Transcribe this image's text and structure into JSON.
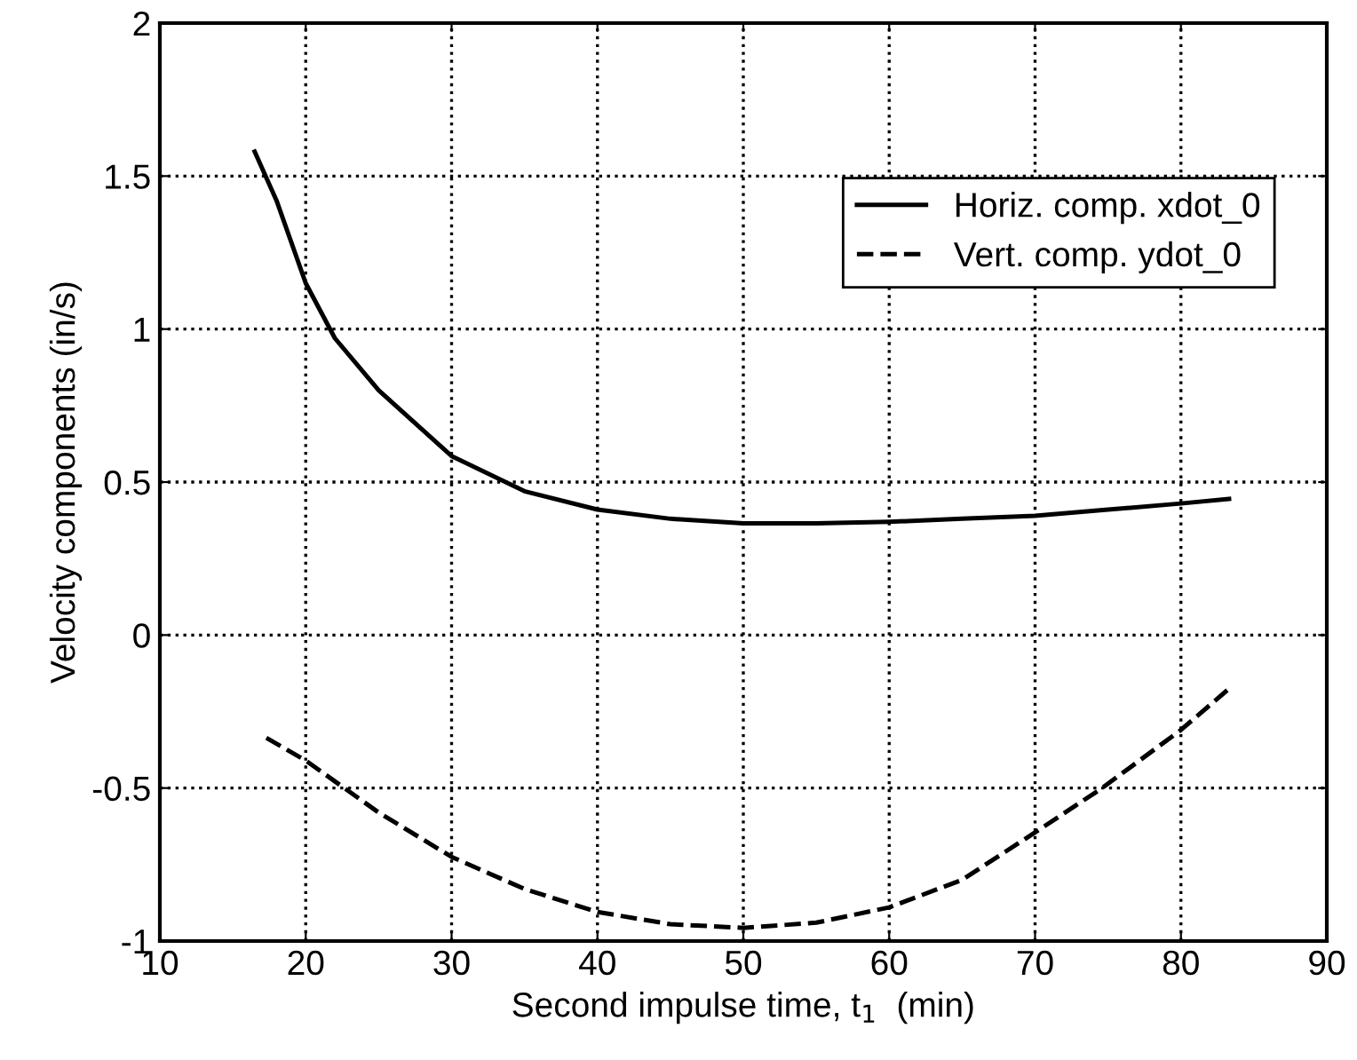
{
  "chart_data": {
    "type": "line",
    "xlabel": "Second impulse time, t$_{1}$  (min)",
    "ylabel": "Velocity components (in/s)",
    "xlim": [
      10,
      90
    ],
    "xticks": [
      10,
      20,
      30,
      40,
      50,
      60,
      70,
      80,
      90
    ],
    "ylim": [
      -1,
      2
    ],
    "yticks": [
      -1,
      -0.5,
      0,
      0.5,
      1,
      1.5,
      2
    ],
    "grid": true,
    "legend": "top right",
    "series": [
      {
        "name": "Horiz. comp. xdot_0",
        "color": "#000000",
        "line_style": "solid",
        "x": [
          16.5,
          18,
          20,
          22,
          25,
          30,
          35,
          40,
          45,
          50,
          55,
          60,
          65,
          70,
          75,
          80,
          83.3
        ],
        "values": [
          1.58,
          1.42,
          1.15,
          0.97,
          0.8,
          0.585,
          0.47,
          0.41,
          0.38,
          0.365,
          0.365,
          0.37,
          0.38,
          0.39,
          0.41,
          0.43,
          0.445
        ]
      },
      {
        "name": "Vert. comp. ydot_0",
        "color": "#000000",
        "line_style": "dashed",
        "x": [
          17.3,
          20,
          25,
          30,
          35,
          40,
          45,
          50,
          55,
          60,
          65,
          70,
          74.6,
          80,
          83.3
        ],
        "values": [
          -0.336,
          -0.41,
          -0.58,
          -0.725,
          -0.83,
          -0.905,
          -0.945,
          -0.957,
          -0.94,
          -0.89,
          -0.8,
          -0.645,
          -0.5,
          -0.31,
          -0.175
        ]
      }
    ]
  }
}
